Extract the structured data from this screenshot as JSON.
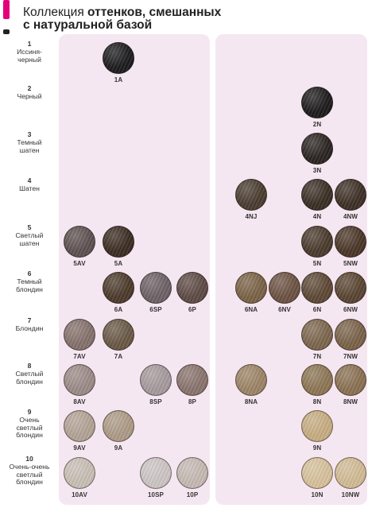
{
  "header": {
    "title_prefix": "Коллекция ",
    "title_bold_1": "оттенков, смешанных",
    "title_bold_2": "с натуральной базой"
  },
  "colors": {
    "panel": "#f5e7f1",
    "accent_marker_top": "#e3007a",
    "accent_marker_bottom": "#222222"
  },
  "rows": [
    {
      "level": "1",
      "name_lines": [
        "Иссиня-",
        "черный"
      ]
    },
    {
      "level": "2",
      "name_lines": [
        "Черный"
      ]
    },
    {
      "level": "3",
      "name_lines": [
        "Темный",
        "шатен"
      ]
    },
    {
      "level": "4",
      "name_lines": [
        "Шатен"
      ]
    },
    {
      "level": "5",
      "name_lines": [
        "Светлый",
        "шатен"
      ]
    },
    {
      "level": "6",
      "name_lines": [
        "Темный",
        "блондин"
      ]
    },
    {
      "level": "7",
      "name_lines": [
        "Блондин"
      ]
    },
    {
      "level": "8",
      "name_lines": [
        "Светлый",
        "блондин"
      ]
    },
    {
      "level": "9",
      "name_lines": [
        "Очень",
        "светлый",
        "блондин"
      ]
    },
    {
      "level": "10",
      "name_lines": [
        "Очень-очень",
        "светлый",
        "блондин"
      ]
    }
  ],
  "swatches": [
    {
      "code": "1A",
      "row": 0,
      "col": 1,
      "color": "#1c1c1f"
    },
    {
      "code": "2N",
      "row": 1,
      "col": 6,
      "color": "#1d1b1b"
    },
    {
      "code": "3N",
      "row": 2,
      "col": 6,
      "color": "#2a2421"
    },
    {
      "code": "4NJ",
      "row": 3,
      "col": 4,
      "color": "#4a3c2f"
    },
    {
      "code": "4N",
      "row": 3,
      "col": 6,
      "color": "#3a2e24"
    },
    {
      "code": "4NW",
      "row": 3,
      "col": 7,
      "color": "#3d2f25"
    },
    {
      "code": "5AV",
      "row": 4,
      "col": 0,
      "color": "#5e5050"
    },
    {
      "code": "5A",
      "row": 4,
      "col": 1,
      "color": "#3b2c22"
    },
    {
      "code": "5N",
      "row": 4,
      "col": 6,
      "color": "#4a3a2c"
    },
    {
      "code": "5NW",
      "row": 4,
      "col": 7,
      "color": "#4a3627"
    },
    {
      "code": "6A",
      "row": 5,
      "col": 1,
      "color": "#4c3a2b"
    },
    {
      "code": "6SP",
      "row": 5,
      "col": 2,
      "color": "#6d6165"
    },
    {
      "code": "6P",
      "row": 5,
      "col": 3,
      "color": "#5e4a45"
    },
    {
      "code": "6NA",
      "row": 5,
      "col": 4,
      "color": "#7a6246"
    },
    {
      "code": "6NV",
      "row": 5,
      "col": 5,
      "color": "#6c5242"
    },
    {
      "code": "6N",
      "row": 5,
      "col": 6,
      "color": "#5d4834"
    },
    {
      "code": "6NW",
      "row": 5,
      "col": 7,
      "color": "#5a4431"
    },
    {
      "code": "7AV",
      "row": 6,
      "col": 0,
      "color": "#85716c"
    },
    {
      "code": "7A",
      "row": 6,
      "col": 1,
      "color": "#6a5846"
    },
    {
      "code": "7N",
      "row": 6,
      "col": 6,
      "color": "#7c664d"
    },
    {
      "code": "7NW",
      "row": 6,
      "col": 7,
      "color": "#7a6249"
    },
    {
      "code": "8AV",
      "row": 7,
      "col": 0,
      "color": "#9b8b87"
    },
    {
      "code": "8SP",
      "row": 7,
      "col": 2,
      "color": "#a69a9d"
    },
    {
      "code": "8P",
      "row": 7,
      "col": 3,
      "color": "#8a736d"
    },
    {
      "code": "8NA",
      "row": 7,
      "col": 4,
      "color": "#9c8466"
    },
    {
      "code": "8N",
      "row": 7,
      "col": 6,
      "color": "#8d7654"
    },
    {
      "code": "8NW",
      "row": 7,
      "col": 7,
      "color": "#8a7152"
    },
    {
      "code": "9AV",
      "row": 8,
      "col": 0,
      "color": "#b3a396"
    },
    {
      "code": "9A",
      "row": 8,
      "col": 1,
      "color": "#ad9b87"
    },
    {
      "code": "9N",
      "row": 8,
      "col": 6,
      "color": "#c7ad82"
    },
    {
      "code": "10AV",
      "row": 9,
      "col": 0,
      "color": "#c8bfb4"
    },
    {
      "code": "10SP",
      "row": 9,
      "col": 2,
      "color": "#ccc5c4"
    },
    {
      "code": "10P",
      "row": 9,
      "col": 3,
      "color": "#c6b9b3"
    },
    {
      "code": "10N",
      "row": 9,
      "col": 6,
      "color": "#d7c19c"
    },
    {
      "code": "10NW",
      "row": 9,
      "col": 7,
      "color": "#d2bb95"
    }
  ]
}
